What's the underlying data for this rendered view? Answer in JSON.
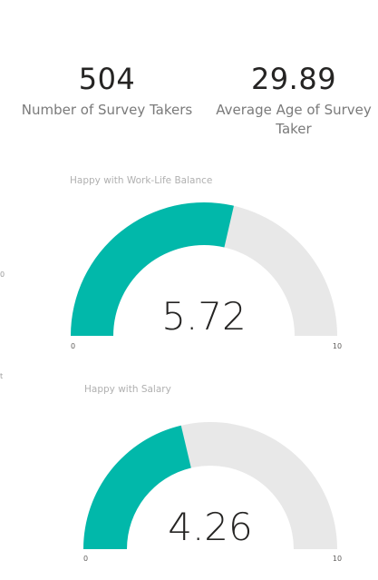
{
  "kpis": {
    "survey_takers": {
      "value": "504",
      "label": "Number of Survey Takers"
    },
    "average_age": {
      "value": "29.89",
      "label": "Average Age of Survey Taker"
    }
  },
  "edge_marks": {
    "first": "0",
    "second": "t"
  },
  "gauges": [
    {
      "title": "Happy with Work-Life Balance",
      "value": 5.72,
      "value_label": "5.72",
      "min": 0,
      "max": 10,
      "min_label": "0",
      "max_label": "10"
    },
    {
      "title": "Happy with Salary",
      "value": 4.26,
      "value_label": "4.26",
      "min": 0,
      "max": 10,
      "min_label": "0",
      "max_label": "10"
    }
  ],
  "colors": {
    "fill": "#01B8AA",
    "track": "#E8E8E8",
    "value_text": "#252423",
    "axis_text": "#605E5C"
  }
}
